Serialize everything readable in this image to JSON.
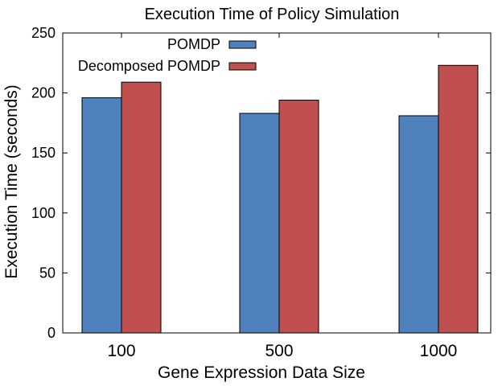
{
  "chart_data": {
    "type": "bar",
    "title": "Execution Time of Policy Simulation",
    "xlabel": "Gene Expression Data Size",
    "ylabel": "Execution Time (seconds)",
    "categories": [
      "100",
      "500",
      "1000"
    ],
    "ylim": [
      0,
      250
    ],
    "yticks": [
      "0",
      "50",
      "100",
      "150",
      "200",
      "250"
    ],
    "grid": false,
    "legend_position": "top-center",
    "series": [
      {
        "name": "POMDP",
        "values": [
          196,
          183,
          181
        ],
        "color": "#4f81bd"
      },
      {
        "name": "Decomposed POMDP",
        "values": [
          209,
          194,
          223
        ],
        "color": "#c0504d"
      }
    ]
  }
}
